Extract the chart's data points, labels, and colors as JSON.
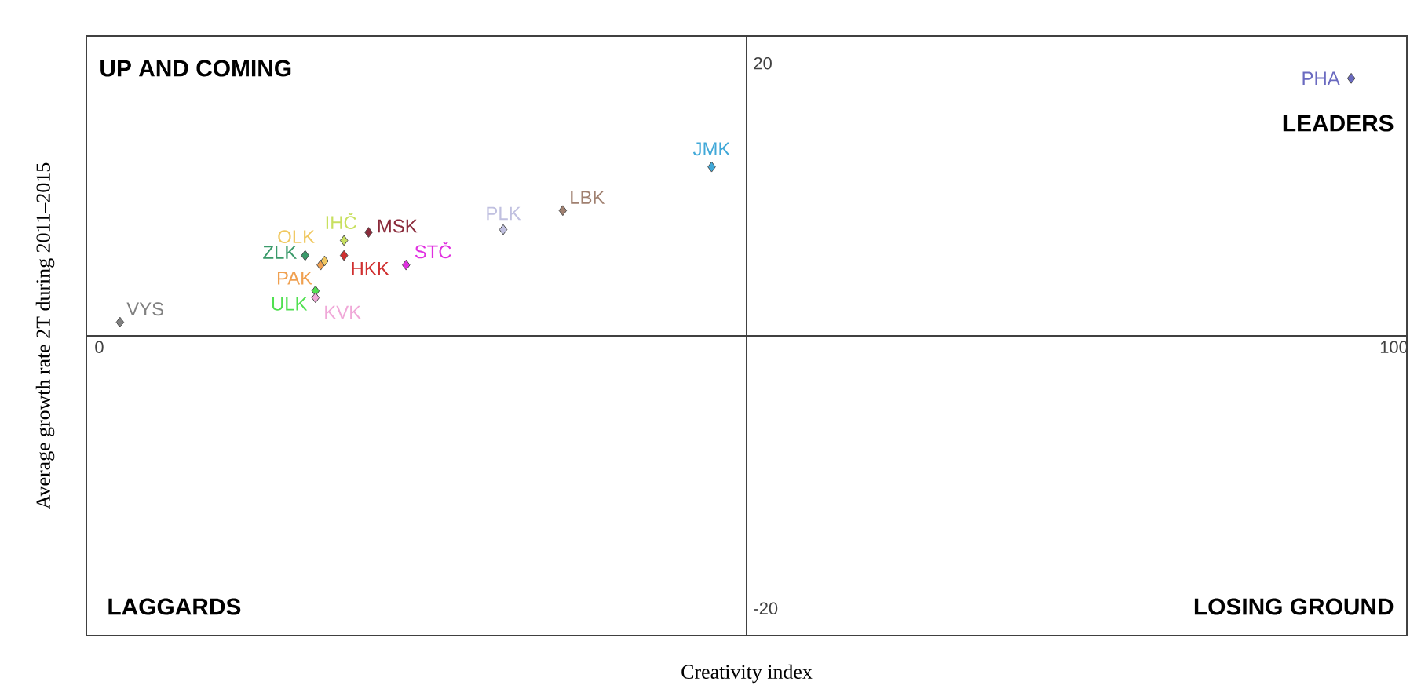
{
  "chart_data": {
    "type": "scatter",
    "xlabel": "Creativity index",
    "ylabel": "Average growth rate 2T during 2011–2015",
    "xlim": [
      -1,
      101
    ],
    "ylim": [
      -22,
      22
    ],
    "xticks": [
      0,
      100
    ],
    "yticks": [
      -20,
      20
    ],
    "marker": "diamond",
    "annotations": [
      "UP AND COMING",
      "LEADERS",
      "LAGGARDS",
      "LOSING GROUND"
    ],
    "series": [
      {
        "name": "VYS",
        "color": "#808080",
        "x": [
          1.6
        ],
        "values": [
          1.0
        ]
      },
      {
        "name": "ZLK",
        "color": "#3a9a6a",
        "x": [
          15.9
        ],
        "values": [
          5.9
        ]
      },
      {
        "name": "PAK",
        "color": "#f0a050",
        "x": [
          17.1
        ],
        "values": [
          5.2
        ]
      },
      {
        "name": "OLK",
        "color": "#f0c860",
        "x": [
          17.4
        ],
        "values": [
          5.5
        ]
      },
      {
        "name": "IHČ",
        "color": "#c8e060",
        "x": [
          18.9
        ],
        "values": [
          7.0
        ]
      },
      {
        "name": "HKK",
        "color": "#d03030",
        "x": [
          18.9
        ],
        "values": [
          5.9
        ]
      },
      {
        "name": "MSK",
        "color": "#8a2a3a",
        "x": [
          20.8
        ],
        "values": [
          7.6
        ]
      },
      {
        "name": "ULK",
        "color": "#50e050",
        "x": [
          16.7
        ],
        "values": [
          3.3
        ]
      },
      {
        "name": "KVK",
        "color": "#f0a8d8",
        "x": [
          16.7
        ],
        "values": [
          2.8
        ]
      },
      {
        "name": "STČ",
        "color": "#e030e0",
        "x": [
          23.7
        ],
        "values": [
          5.2
        ]
      },
      {
        "name": "PLK",
        "color": "#c0c0e0",
        "x": [
          31.2
        ],
        "values": [
          7.8
        ]
      },
      {
        "name": "LBK",
        "color": "#a08070",
        "x": [
          35.8
        ],
        "values": [
          9.2
        ]
      },
      {
        "name": "JMK",
        "color": "#40a8d8",
        "x": [
          47.3
        ],
        "values": [
          12.4
        ]
      },
      {
        "name": "PHA",
        "color": "#6a6ac0",
        "x": [
          96.7
        ],
        "values": [
          18.9
        ]
      }
    ]
  }
}
